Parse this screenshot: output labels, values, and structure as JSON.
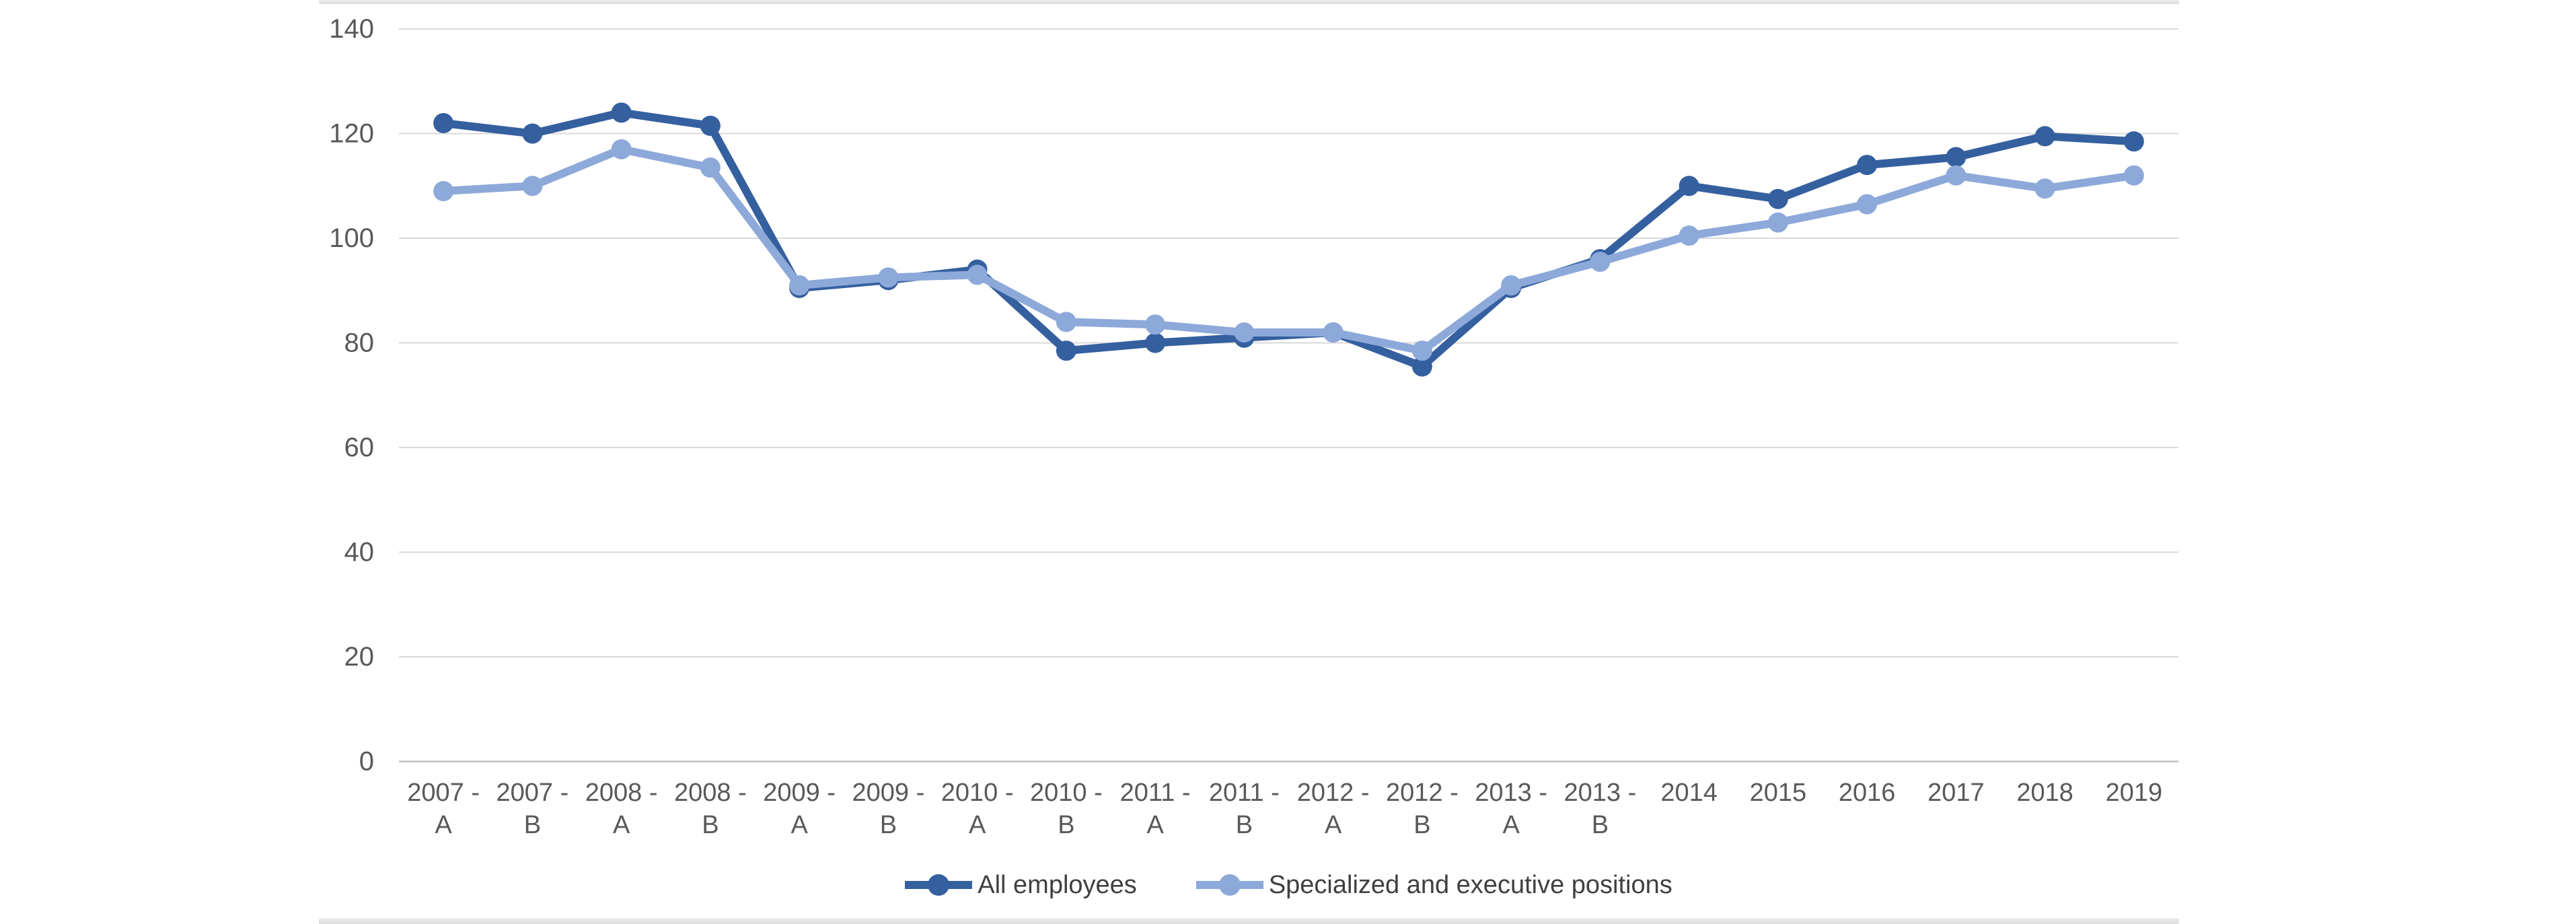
{
  "chart_data": {
    "type": "line",
    "title": "",
    "xlabel": "",
    "ylabel": "",
    "ylim": [
      0,
      140
    ],
    "yticks": [
      0,
      20,
      40,
      60,
      80,
      100,
      120,
      140
    ],
    "grid": true,
    "legend_position": "bottom",
    "categories": [
      "2007 - A",
      "2007 - B",
      "2008 - A",
      "2008 - B",
      "2009 - A",
      "2009 - B",
      "2010 - A",
      "2010 - B",
      "2011 - A",
      "2011 - B",
      "2012 - A",
      "2012 - B",
      "2013 - A",
      "2013 - B",
      "2014",
      "2015",
      "2016",
      "2017",
      "2018",
      "2019"
    ],
    "series": [
      {
        "name": "All employees",
        "color": "#35609F",
        "values": [
          122,
          120,
          124,
          121.5,
          90.5,
          92,
          94,
          78.5,
          80,
          81,
          82,
          75.5,
          90.5,
          96,
          110,
          107.5,
          114,
          115.5,
          119.5,
          118.5
        ]
      },
      {
        "name": "Specialized and executive positions",
        "color": "#8DA9DA",
        "values": [
          109,
          110,
          117,
          113.5,
          91,
          92.5,
          93,
          84,
          83.5,
          82,
          82,
          78.5,
          91,
          95.5,
          100.5,
          103,
          106.5,
          112,
          109.5,
          112
        ]
      }
    ],
    "colors": {
      "gridline": "#D9D9D9",
      "axis_line": "#C0C0C0",
      "tick_label": "#595959",
      "legend_text": "#404040",
      "chart_border": "#E2E2E2"
    }
  }
}
